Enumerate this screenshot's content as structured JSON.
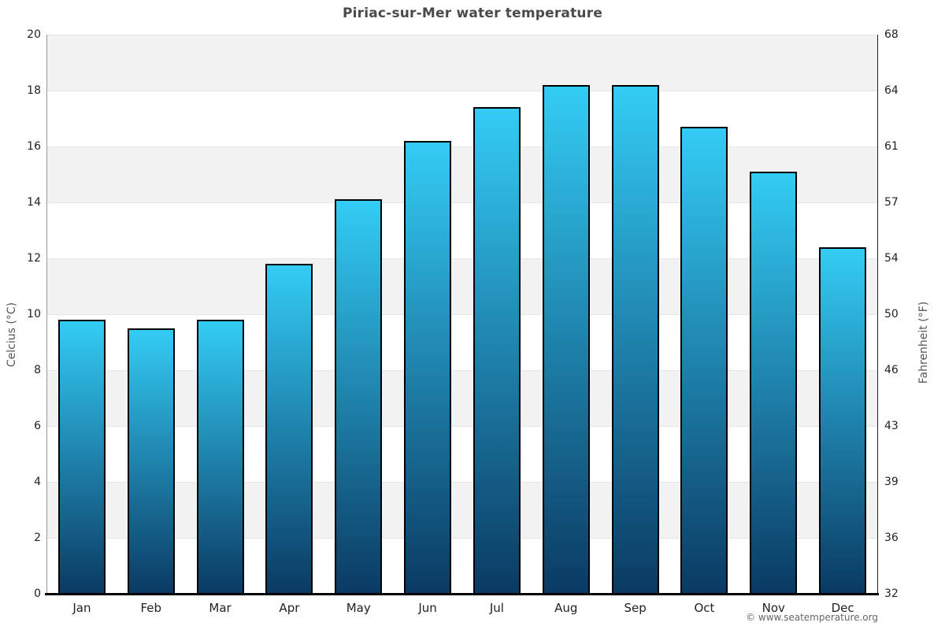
{
  "page": {
    "title": "Piriac-sur-Mer water temperature",
    "footer": "© www.seatemperature.org"
  },
  "chart_data": {
    "type": "bar",
    "title": "Piriac-sur-Mer water temperature",
    "categories": [
      "Jan",
      "Feb",
      "Mar",
      "Apr",
      "May",
      "Jun",
      "Jul",
      "Aug",
      "Sep",
      "Oct",
      "Nov",
      "Dec"
    ],
    "series": [
      {
        "name": "Water temperature (°C)",
        "values": [
          9.8,
          9.5,
          9.8,
          11.8,
          14.1,
          16.2,
          17.4,
          18.2,
          18.2,
          16.7,
          15.1,
          12.4
        ]
      }
    ],
    "xlabel": "",
    "ylabel": "Celcius (°C)",
    "ylabel_secondary": "Fahrenheit (°F)",
    "ylim": [
      0,
      20
    ],
    "yticks": [
      0,
      2,
      4,
      6,
      8,
      10,
      12,
      14,
      16,
      18,
      20
    ],
    "yticks_secondary": [
      "32",
      "36",
      "39",
      "43",
      "46",
      "50",
      "54",
      "57",
      "61",
      "64",
      "68"
    ],
    "legend": "none",
    "grid": "alternating-horizontal-bands",
    "band_ranges": [
      [
        2,
        4
      ],
      [
        6,
        8
      ],
      [
        10,
        12
      ],
      [
        14,
        16
      ],
      [
        18,
        20
      ]
    ],
    "colors": {
      "bar_gradient_top": "#33ccf5",
      "bar_gradient_bottom": "#0a3a63",
      "bar_border": "#000000",
      "band_fill": "#f2f2f2",
      "gridline": "#e6e6e6",
      "title_color": "#4a4a4a",
      "tick_color": "#222222",
      "axis_title_color": "#555555",
      "footer_color": "#666666"
    }
  }
}
